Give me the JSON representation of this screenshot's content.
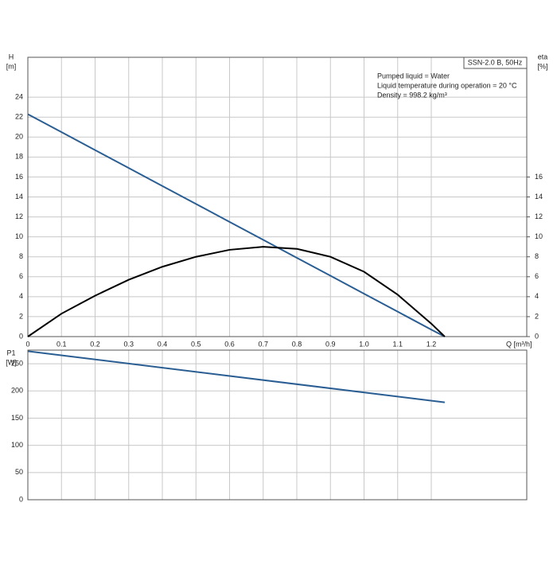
{
  "chart_data": [
    {
      "type": "line",
      "legend_title": "SSN-2.0 B, 50Hz",
      "notes": [
        "Pumped liquid = Water",
        "Liquid temperature during operation = 20 °C",
        "Density = 998.2 kg/m³"
      ],
      "y_label": "H",
      "y_unit": "[m]",
      "y2_label": "eta",
      "y2_unit": "[%]",
      "x_label": "Q [m³/h]",
      "xlim": [
        0,
        1.484
      ],
      "xticks": [
        0,
        0.1,
        0.2,
        0.3,
        0.4,
        0.5,
        0.6,
        0.7,
        0.8,
        0.9,
        {
          "value": 1,
          "label": "1.0"
        },
        1.1,
        1.2
      ],
      "ylim": [
        0,
        28
      ],
      "yticks": [
        0,
        2,
        4,
        6,
        8,
        10,
        12,
        14,
        16,
        18,
        20,
        22,
        24
      ],
      "y2lim": [
        0,
        28
      ],
      "y2ticks": [
        0,
        2,
        4,
        6,
        8,
        10,
        12,
        14,
        16
      ],
      "grid": true,
      "x": [
        0,
        0.1,
        0.2,
        0.3,
        0.4,
        0.5,
        0.6,
        0.7,
        0.8,
        0.9,
        1.0,
        1.1,
        1.2,
        1.24
      ],
      "series": [
        {
          "color": "#2a5e93",
          "values": [
            22.3,
            20.5,
            18.7,
            16.9,
            15.1,
            13.3,
            11.5,
            9.7,
            7.9,
            6.1,
            4.3,
            2.5,
            0.7,
            0
          ]
        },
        {
          "color": "#000000",
          "axis": "y2",
          "values": [
            0,
            2.3,
            4.1,
            5.7,
            7.0,
            8.0,
            8.7,
            9.0,
            8.8,
            8.0,
            6.5,
            4.2,
            1.3,
            0
          ]
        }
      ]
    },
    {
      "type": "line",
      "y_label": "P1",
      "y_unit": "[W]",
      "xlim": [
        0,
        1.484
      ],
      "ylim": [
        0,
        275
      ],
      "yticks": [
        0,
        50,
        100,
        150,
        200,
        250
      ],
      "grid": true,
      "x": [
        0,
        1.24
      ],
      "series": [
        {
          "color": "#2a5e93",
          "values": [
            273,
            179
          ]
        }
      ]
    }
  ]
}
